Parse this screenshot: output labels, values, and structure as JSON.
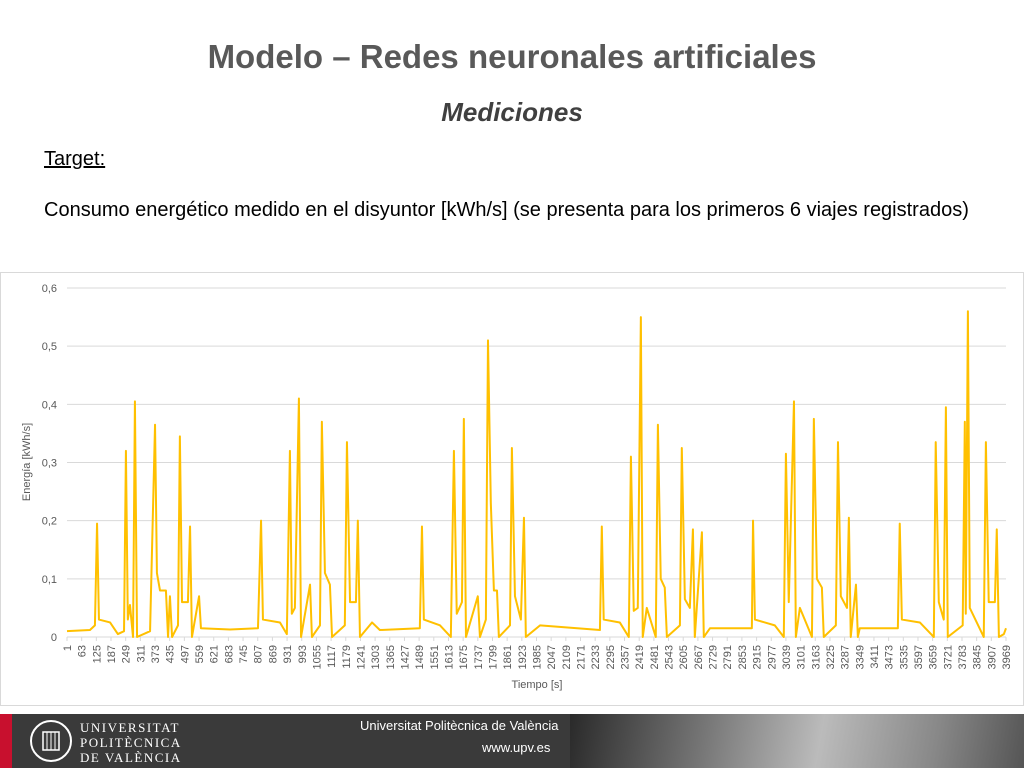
{
  "header": {
    "title": "Modelo – Redes neuronales artificiales",
    "subtitle": "Mediciones"
  },
  "body": {
    "label": "Target:",
    "text": "Consumo energético medido en el disyuntor [kWh/s] (se presenta para los primeros 6 viajes registrados)"
  },
  "footer": {
    "logo": [
      "UNIVERSITAT",
      "POLITÈCNICA",
      "DE VALÈNCIA"
    ],
    "institution": "Universitat Politècnica de València",
    "url": "www.upv.es"
  },
  "chart_data": {
    "type": "line",
    "y_label": "Energía [kWh/s]",
    "x_label": "Tiempo [s]",
    "grid": true,
    "xlim": [
      1,
      3969
    ],
    "ylim": [
      0,
      0.6
    ],
    "yticks": [
      0,
      {
        "value": 0.1,
        "label": "0,1"
      },
      {
        "value": 0.2,
        "label": "0,2"
      },
      {
        "value": 0.3,
        "label": "0,3"
      },
      {
        "value": 0.4,
        "label": "0,4"
      },
      {
        "value": 0.5,
        "label": "0,5"
      },
      {
        "value": 0.6,
        "label": "0,6"
      }
    ],
    "xticks": [
      1,
      63,
      125,
      187,
      249,
      311,
      373,
      435,
      497,
      559,
      621,
      683,
      745,
      807,
      869,
      931,
      993,
      1055,
      1117,
      1179,
      1241,
      1303,
      1365,
      1427,
      1489,
      1551,
      1613,
      1675,
      1737,
      1799,
      1861,
      1923,
      1985,
      2047,
      2109,
      2171,
      2233,
      2295,
      2357,
      2419,
      2481,
      2543,
      2605,
      2667,
      2729,
      2791,
      2853,
      2915,
      2977,
      3039,
      3101,
      3163,
      3225,
      3287,
      3349,
      3411,
      3473,
      3535,
      3597,
      3659,
      3721,
      3783,
      3845,
      3907,
      3969
    ],
    "x": [
      1,
      98,
      119,
      128,
      136,
      183,
      216,
      242,
      250,
      258,
      267,
      280,
      288,
      297,
      352,
      373,
      381,
      394,
      419,
      428,
      436,
      445,
      470,
      478,
      487,
      512,
      521,
      529,
      559,
      567,
      690,
      808,
      821,
      829,
      901,
      930,
      943,
      951,
      964,
      981,
      990,
      1028,
      1036,
      1070,
      1078,
      1091,
      1112,
      1121,
      1175,
      1184,
      1197,
      1222,
      1230,
      1239,
      1290,
      1323,
      1492,
      1501,
      1509,
      1577,
      1623,
      1636,
      1648,
      1670,
      1678,
      1687,
      1737,
      1746,
      1771,
      1780,
      1792,
      1805,
      1818,
      1826,
      1873,
      1881,
      1894,
      1919,
      1932,
      1940,
      2000,
      2253,
      2261,
      2269,
      2337,
      2375,
      2384,
      2396,
      2413,
      2426,
      2434,
      2451,
      2489,
      2498,
      2510,
      2527,
      2536,
      2591,
      2599,
      2612,
      2633,
      2646,
      2654,
      2684,
      2692,
      2718,
      2895,
      2900,
      2908,
      2992,
      3030,
      3039,
      3051,
      3073,
      3081,
      3098,
      3149,
      3157,
      3170,
      3191,
      3199,
      3250,
      3259,
      3271,
      3297,
      3305,
      3313,
      3335,
      3343,
      3351,
      3512,
      3520,
      3529,
      3605,
      3664,
      3672,
      3685,
      3706,
      3715,
      3723,
      3786,
      3795,
      3799,
      3808,
      3816,
      3875,
      3884,
      3896,
      3922,
      3930,
      3939,
      3960,
      3969
    ],
    "series": [
      {
        "color": "#ffc000",
        "values": [
          0.01,
          0.012,
          0.02,
          0.195,
          0.03,
          0.025,
          0.005,
          0.01,
          0.32,
          0.03,
          0.055,
          0,
          0.405,
          0,
          0.01,
          0.365,
          0.11,
          0.08,
          0.08,
          0,
          0.07,
          0,
          0.02,
          0.345,
          0.06,
          0.06,
          0.19,
          0,
          0.07,
          0.015,
          0.013,
          0.015,
          0.2,
          0.03,
          0.025,
          0.005,
          0.32,
          0.04,
          0.05,
          0.41,
          0,
          0.09,
          0,
          0.02,
          0.37,
          0.11,
          0.09,
          0,
          0.02,
          0.335,
          0.06,
          0.06,
          0.2,
          0,
          0.025,
          0.012,
          0.015,
          0.19,
          0.03,
          0.02,
          0,
          0.32,
          0.04,
          0.06,
          0.375,
          0,
          0.07,
          0,
          0.03,
          0.51,
          0.23,
          0.08,
          0.08,
          0,
          0.02,
          0.325,
          0.07,
          0.03,
          0.205,
          0,
          0.02,
          0.012,
          0.19,
          0.03,
          0.025,
          0,
          0.31,
          0.045,
          0.05,
          0.55,
          0,
          0.05,
          0,
          0.365,
          0.1,
          0.085,
          0,
          0.02,
          0.325,
          0.065,
          0.05,
          0.185,
          0,
          0.18,
          0,
          0.015,
          0.015,
          0.2,
          0.03,
          0.02,
          0,
          0.315,
          0.06,
          0.405,
          0,
          0.05,
          0,
          0.375,
          0.1,
          0.085,
          0,
          0.02,
          0.335,
          0.07,
          0.05,
          0.205,
          0,
          0.09,
          0,
          0.015,
          0.015,
          0.195,
          0.03,
          0.025,
          0,
          0.335,
          0.06,
          0.03,
          0.395,
          0,
          0.02,
          0.37,
          0.04,
          0.56,
          0.05,
          0,
          0.335,
          0.06,
          0.06,
          0.185,
          0,
          0.005,
          0.015
        ]
      }
    ]
  }
}
